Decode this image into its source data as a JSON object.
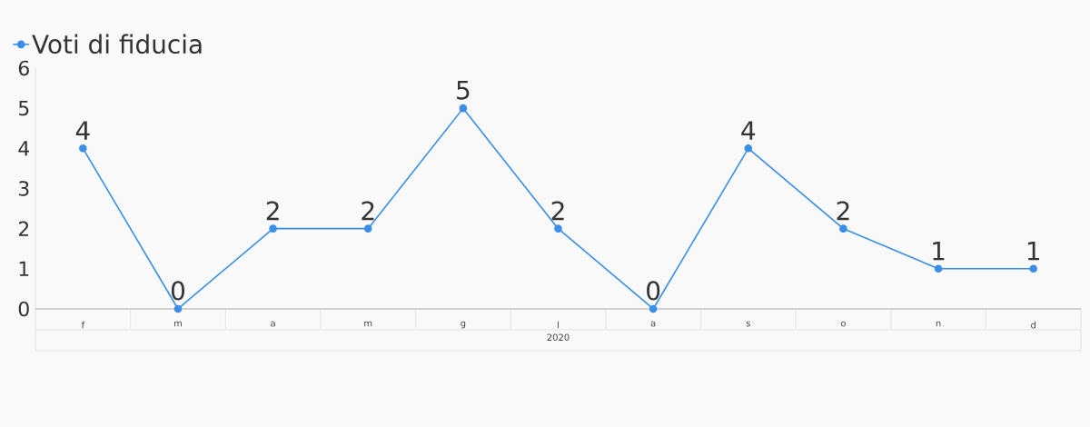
{
  "chart_data": {
    "type": "line",
    "xlabel": "2020",
    "categories": [
      "f",
      "m",
      "a",
      "m",
      "g",
      "l",
      "a",
      "s",
      "o",
      "n",
      "d"
    ],
    "series": [
      {
        "name": "Voti di fiducia",
        "color": "#3a8ee6",
        "values": [
          4,
          0,
          2,
          2,
          5,
          2,
          0,
          4,
          2,
          1,
          1
        ]
      }
    ],
    "ylim": [
      0,
      6
    ],
    "yticks": [
      0,
      1,
      2,
      3,
      4,
      5,
      6
    ],
    "data_labels": true,
    "legend": "top left",
    "marker": "circle",
    "line_style": "solid"
  }
}
